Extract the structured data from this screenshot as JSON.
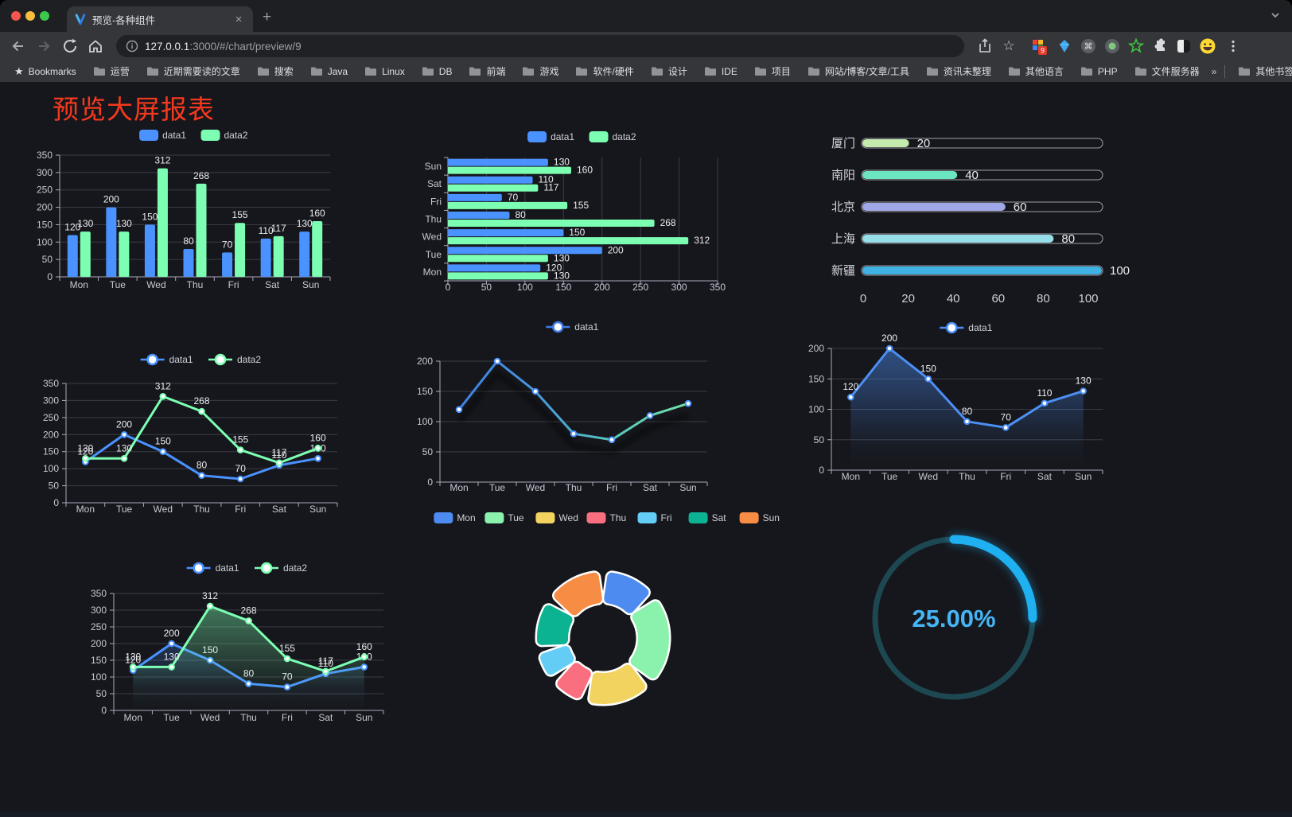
{
  "browser": {
    "tab_title": "预览-各种组件",
    "url_host": "127.0.0.1",
    "url_rest": ":3000/#/chart/preview/9",
    "new_tab": "+",
    "close_tab": "×",
    "bookmarks_item": "Bookmarks",
    "bookmarks": [
      "运营",
      "近期需要读的文章",
      "搜索",
      "Java",
      "Linux",
      "DB",
      "前端",
      "游戏",
      "软件/硬件",
      "设计",
      "IDE",
      "项目",
      "网站/博客/文章/工具",
      "资讯未整理",
      "其他语言",
      "PHP",
      "文件服务器"
    ],
    "bookmarks_overflow": "»",
    "other_bookmarks": "其他书签",
    "extension_badge": "9"
  },
  "page": {
    "title": "预览大屏报表",
    "title_color": "#f5391e",
    "background": "#16171c"
  },
  "chart_data": [
    {
      "name": "bar-chart",
      "type": "bar",
      "categories": [
        "Mon",
        "Tue",
        "Wed",
        "Thu",
        "Fri",
        "Sat",
        "Sun"
      ],
      "series": [
        {
          "name": "data1",
          "color": "#4992ff",
          "values": [
            120,
            200,
            150,
            80,
            70,
            110,
            130
          ]
        },
        {
          "name": "data2",
          "color": "#7cffb2",
          "values": [
            130,
            130,
            312,
            268,
            155,
            117,
            160
          ]
        }
      ],
      "ylim": [
        0,
        350
      ],
      "ytick": 50,
      "labels": true,
      "legend_position": "top",
      "grid": true
    },
    {
      "name": "horizontal-bar-chart",
      "type": "hbar",
      "categories": [
        "Mon",
        "Tue",
        "Wed",
        "Thu",
        "Fri",
        "Sat",
        "Sun"
      ],
      "series": [
        {
          "name": "data1",
          "color": "#4992ff",
          "values": [
            120,
            200,
            150,
            80,
            70,
            110,
            130
          ]
        },
        {
          "name": "data2",
          "color": "#7cffb2",
          "values": [
            130,
            130,
            312,
            268,
            155,
            117,
            160
          ]
        }
      ],
      "xlim": [
        0,
        350
      ],
      "xtick": 50,
      "labels": true,
      "legend_position": "top",
      "grid": true
    },
    {
      "name": "progress-bar-chart",
      "type": "progress",
      "items": [
        {
          "label": "厦门",
          "value": 20,
          "color": "#c4ebad"
        },
        {
          "label": "南阳",
          "value": 40,
          "color": "#6be6c1"
        },
        {
          "label": "北京",
          "value": 60,
          "color": "#a0a7e6"
        },
        {
          "label": "上海",
          "value": 80,
          "color": "#96dee8"
        },
        {
          "label": "新疆",
          "value": 100,
          "color": "#3fb1e3"
        }
      ],
      "max": 100,
      "ticks": [
        0,
        20,
        40,
        60,
        80,
        100
      ]
    },
    {
      "name": "line-chart-two-series",
      "type": "line",
      "categories": [
        "Mon",
        "Tue",
        "Wed",
        "Thu",
        "Fri",
        "Sat",
        "Sun"
      ],
      "series": [
        {
          "name": "data1",
          "color": "#4992ff",
          "values": [
            120,
            200,
            150,
            80,
            70,
            110,
            130
          ]
        },
        {
          "name": "data2",
          "color": "#7cffb2",
          "values": [
            130,
            130,
            312,
            268,
            155,
            117,
            160
          ]
        }
      ],
      "ylim": [
        0,
        350
      ],
      "ytick": 50,
      "labels": true,
      "legend_position": "top",
      "grid": true
    },
    {
      "name": "gradient-line-chart",
      "type": "line",
      "categories": [
        "Mon",
        "Tue",
        "Wed",
        "Thu",
        "Fri",
        "Sat",
        "Sun"
      ],
      "series": [
        {
          "name": "data1",
          "color": "#4992ff",
          "gradient": [
            "#3d7be8",
            "#4596dd",
            "#57c8bc",
            "#76e8a2"
          ],
          "values": [
            120,
            200,
            150,
            80,
            70,
            110,
            130
          ],
          "shadow": true
        }
      ],
      "ylim": [
        0,
        200
      ],
      "ytick": 50,
      "labels": false,
      "legend_position": "top",
      "grid": true
    },
    {
      "name": "area-chart-single",
      "type": "line",
      "categories": [
        "Mon",
        "Tue",
        "Wed",
        "Thu",
        "Fri",
        "Sat",
        "Sun"
      ],
      "series": [
        {
          "name": "data1",
          "color": "#4c8ff5",
          "area": true,
          "values": [
            120,
            200,
            150,
            80,
            70,
            110,
            130
          ]
        }
      ],
      "ylim": [
        0,
        200
      ],
      "ytick": 50,
      "labels": true,
      "legend_position": "top",
      "grid": true
    },
    {
      "name": "area-chart-two-series",
      "type": "line",
      "categories": [
        "Mon",
        "Tue",
        "Wed",
        "Thu",
        "Fri",
        "Sat",
        "Sun"
      ],
      "series": [
        {
          "name": "data1",
          "color": "#4992ff",
          "area": true,
          "values": [
            120,
            200,
            150,
            80,
            70,
            110,
            130
          ]
        },
        {
          "name": "data2",
          "color": "#7cffb2",
          "area": true,
          "values": [
            130,
            130,
            312,
            268,
            155,
            117,
            160
          ]
        }
      ],
      "ylim": [
        0,
        350
      ],
      "ytick": 50,
      "labels": true,
      "legend_position": "top",
      "grid": true
    },
    {
      "name": "donut-chart",
      "type": "pie",
      "items": [
        {
          "label": "Mon",
          "value": 120,
          "color": "#4e8bf0"
        },
        {
          "label": "Tue",
          "value": 200,
          "color": "#8bf2ae"
        },
        {
          "label": "Wed",
          "value": 150,
          "color": "#f3d35f"
        },
        {
          "label": "Thu",
          "value": 80,
          "color": "#fa6f7f"
        },
        {
          "label": "Fri",
          "value": 70,
          "color": "#63cdf6"
        },
        {
          "label": "Sat",
          "value": 110,
          "color": "#0cb393"
        },
        {
          "label": "Sun",
          "value": 130,
          "color": "#f78c44"
        }
      ],
      "legend_position": "top"
    },
    {
      "name": "gauge-chart",
      "type": "gauge",
      "value": 25,
      "display": "25.00%",
      "track_color": "#1d4852",
      "progress_color": "#1fb0f2",
      "text_color": "#45b5f5"
    }
  ]
}
